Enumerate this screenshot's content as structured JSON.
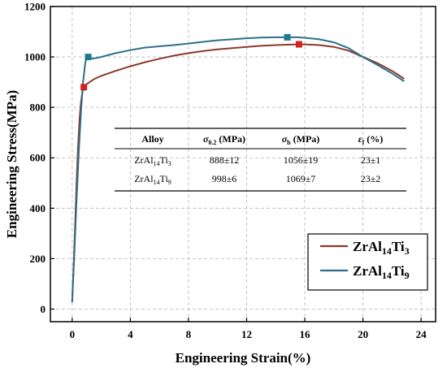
{
  "chart_data": {
    "type": "line",
    "title": "",
    "xlabel": "Engineering Strain(%)",
    "ylabel": "Engineering Stress(MPa)",
    "xlim": [
      -1.5,
      25
    ],
    "ylim": [
      -50,
      1200
    ],
    "xticks": [
      0,
      4,
      8,
      12,
      16,
      20,
      24
    ],
    "yticks": [
      0,
      200,
      400,
      600,
      800,
      1000,
      1200
    ],
    "grid": true,
    "legend_position": "bottom-right",
    "series": [
      {
        "name": "ZrAl14Ti3",
        "name_parts": {
          "base": "ZrAl",
          "sub1": "14",
          "mid": "Ti",
          "sub2": "3"
        },
        "color": "#8b3a2c",
        "x": [
          0,
          0.1,
          0.2,
          0.3,
          0.4,
          0.5,
          0.6,
          0.7,
          0.8,
          1.0,
          1.5,
          2,
          3,
          4,
          5,
          6,
          7,
          8,
          9,
          10,
          11,
          12,
          13,
          14,
          15,
          15.6,
          16,
          17,
          18,
          19,
          20,
          21,
          22,
          22.8
        ],
        "y": [
          30,
          170,
          330,
          500,
          640,
          750,
          820,
          860,
          880,
          892,
          912,
          925,
          945,
          963,
          979,
          993,
          1005,
          1015,
          1023,
          1030,
          1035,
          1040,
          1044,
          1047,
          1049,
          1050,
          1050,
          1047,
          1040,
          1025,
          1000,
          975,
          945,
          915
        ],
        "marker": {
          "x": 0.8,
          "y": 880,
          "color": "#d42020"
        },
        "marker2": {
          "x": 15.6,
          "y": 1050,
          "color": "#d42020"
        }
      },
      {
        "name": "ZrAl14Ti9",
        "name_parts": {
          "base": "ZrAl",
          "sub1": "14",
          "mid": "Ti",
          "sub2": "9"
        },
        "color": "#2e6f8a",
        "x": [
          0,
          0.15,
          0.3,
          0.45,
          0.6,
          0.75,
          0.9,
          1.0,
          1.1,
          1.3,
          1.6,
          2,
          3,
          4,
          5,
          6,
          7,
          8,
          9,
          10,
          11,
          12,
          13,
          14,
          14.8,
          15.5,
          16,
          17,
          18,
          19,
          20,
          21,
          22,
          22.8
        ],
        "y": [
          30,
          220,
          430,
          620,
          780,
          900,
          975,
          998,
          1000,
          993,
          995,
          1000,
          1015,
          1027,
          1037,
          1042,
          1047,
          1053,
          1060,
          1066,
          1070,
          1074,
          1077,
          1078,
          1078,
          1078,
          1076,
          1070,
          1058,
          1035,
          1000,
          968,
          935,
          905
        ],
        "marker": {
          "x": 1.1,
          "y": 1000,
          "color": "#1f7a8c"
        },
        "marker2": {
          "x": 14.8,
          "y": 1078,
          "color": "#1f7a8c"
        }
      }
    ],
    "table": {
      "headers": {
        "alloy": "Alloy",
        "sigma02_sym": "σ",
        "sigma02_sub": "0.2",
        "sigma02_unit": " (MPa)",
        "sigmab_sym": "σ",
        "sigmab_sub": "b",
        "sigmab_unit": " (MPa)",
        "eps_sym": "ε",
        "eps_sub": "f",
        "eps_unit": " (%)"
      },
      "rows": [
        {
          "alloy_base": "ZrAl",
          "alloy_sub1": "14",
          "alloy_mid": "Ti",
          "alloy_sub2": "3",
          "sigma02": "888±12",
          "sigmab": "1056±19",
          "eps": "23±1"
        },
        {
          "alloy_base": "ZrAl",
          "alloy_sub1": "14",
          "alloy_mid": "Ti",
          "alloy_sub2": "9",
          "sigma02": "998±6",
          "sigmab": "1069±7",
          "eps": "23±2"
        }
      ]
    }
  }
}
